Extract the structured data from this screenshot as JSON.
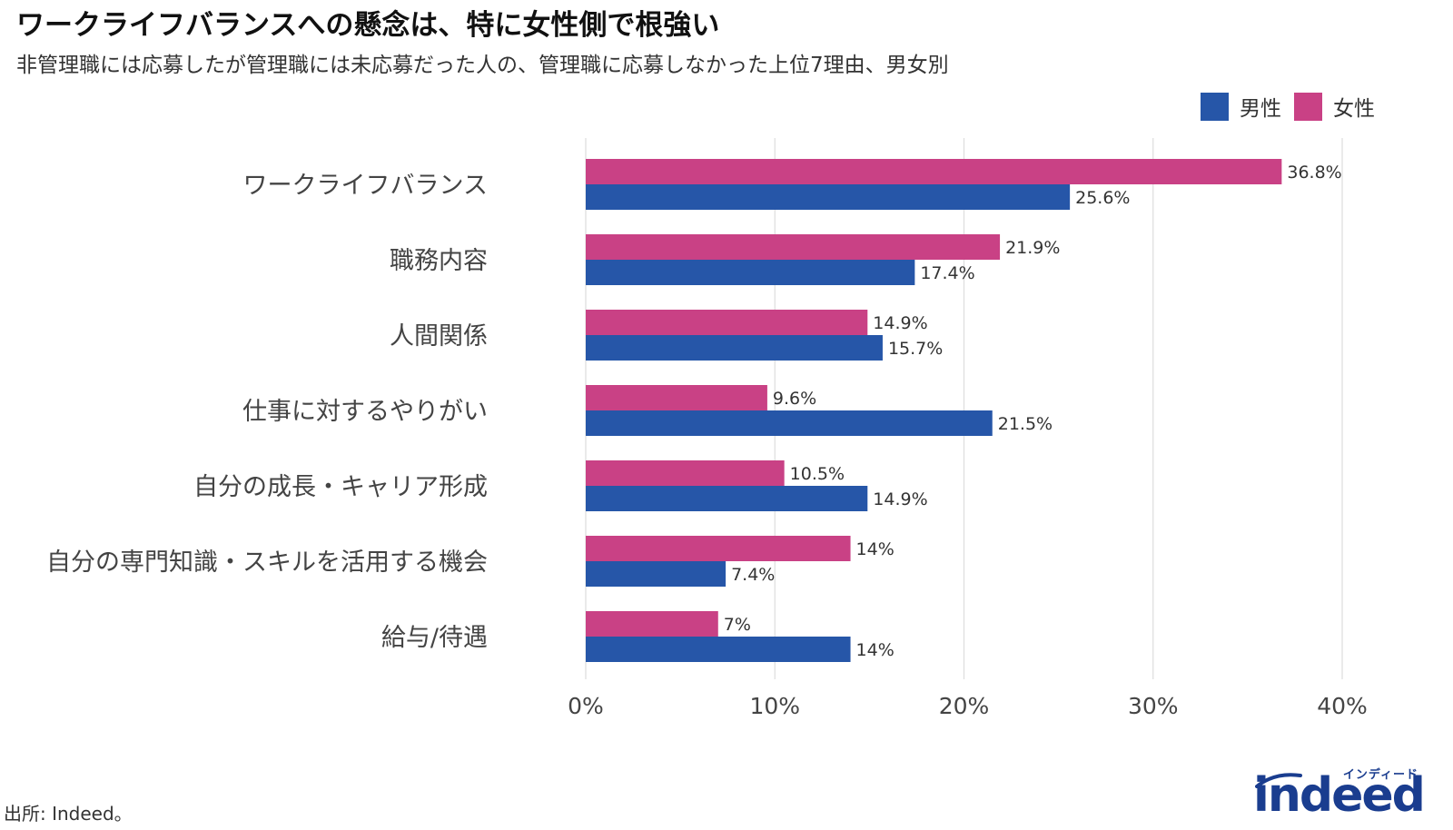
{
  "title": "ワークライフバランスへの懸念は、特に女性側で根強い",
  "subtitle": "非管理職には応募したが管理職には未応募だった人の、管理職に応募しなかった上位7理由、男女別",
  "source": "出所: Indeed。",
  "logo": {
    "word": "indeed",
    "kana": "インディード"
  },
  "colors": {
    "male": "#2656a8",
    "female": "#c94185",
    "grid": "#dddddd"
  },
  "chart_data": {
    "type": "bar",
    "orientation": "horizontal",
    "categories": [
      "ワークライフバランス",
      "職務内容",
      "人間関係",
      "仕事に対するやりがい",
      "自分の成長・キャリア形成",
      "自分の専門知識・スキルを活用する機会",
      "給与/待遇"
    ],
    "series": [
      {
        "name": "女性",
        "values": [
          36.8,
          21.9,
          14.9,
          9.6,
          10.5,
          14,
          7
        ],
        "labels": [
          "36.8%",
          "21.9%",
          "14.9%",
          "9.6%",
          "10.5%",
          "14%",
          "7%"
        ],
        "color": "#c94185"
      },
      {
        "name": "男性",
        "values": [
          25.6,
          17.4,
          15.7,
          21.5,
          14.9,
          7.4,
          14
        ],
        "labels": [
          "25.6%",
          "17.4%",
          "15.7%",
          "21.5%",
          "14.9%",
          "7.4%",
          "14%"
        ],
        "color": "#2656a8"
      }
    ],
    "xlim": [
      0,
      40
    ],
    "xticks": [
      0,
      10,
      20,
      30,
      40
    ],
    "xtick_labels": [
      "0%",
      "10%",
      "20%",
      "30%",
      "40%"
    ],
    "legend": {
      "position": "top-right",
      "entries": [
        "男性",
        "女性"
      ]
    },
    "grid": true
  }
}
